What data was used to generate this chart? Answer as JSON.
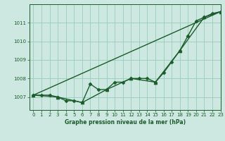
{
  "background_color": "#cce8e0",
  "grid_color": "#99ccbb",
  "line_color": "#1a5c2a",
  "title": "Graphe pression niveau de la mer (hPa)",
  "xlim": [
    -0.5,
    23
  ],
  "ylim": [
    1006.3,
    1012.0
  ],
  "yticks": [
    1007,
    1008,
    1009,
    1010,
    1011
  ],
  "xticks": [
    0,
    1,
    2,
    3,
    4,
    5,
    6,
    7,
    8,
    9,
    10,
    11,
    12,
    13,
    14,
    15,
    16,
    17,
    18,
    19,
    20,
    21,
    22,
    23
  ],
  "series": [
    {
      "x": [
        0,
        1,
        2,
        3,
        4,
        5,
        6,
        7,
        8,
        9,
        10,
        11,
        12,
        13,
        14,
        15,
        16,
        17,
        18,
        19,
        20,
        21,
        22,
        23
      ],
      "y": [
        1007.1,
        1007.1,
        1007.1,
        1007.0,
        1006.8,
        1006.8,
        1006.7,
        1007.7,
        1007.4,
        1007.4,
        1007.8,
        1007.8,
        1008.0,
        1008.0,
        1008.0,
        1007.8,
        1008.3,
        1008.9,
        1009.5,
        1010.3,
        1011.1,
        1011.3,
        1011.5,
        1011.6
      ],
      "marker": "D",
      "markersize": 2.5,
      "linewidth": 1.0
    },
    {
      "x": [
        0,
        3,
        6,
        9,
        12,
        15,
        18,
        21,
        23
      ],
      "y": [
        1007.1,
        1007.0,
        1006.7,
        1007.4,
        1008.0,
        1007.8,
        1009.5,
        1011.3,
        1011.6
      ],
      "marker": "^",
      "markersize": 3.5,
      "linewidth": 1.0
    },
    {
      "x": [
        0,
        23
      ],
      "y": [
        1007.1,
        1011.6
      ],
      "marker": null,
      "markersize": 0,
      "linewidth": 1.0
    }
  ],
  "figsize": [
    3.2,
    2.0
  ],
  "dpi": 100,
  "title_fontsize": 5.5,
  "tick_fontsize": 5.0,
  "xlabel_fontsize": 5.5
}
